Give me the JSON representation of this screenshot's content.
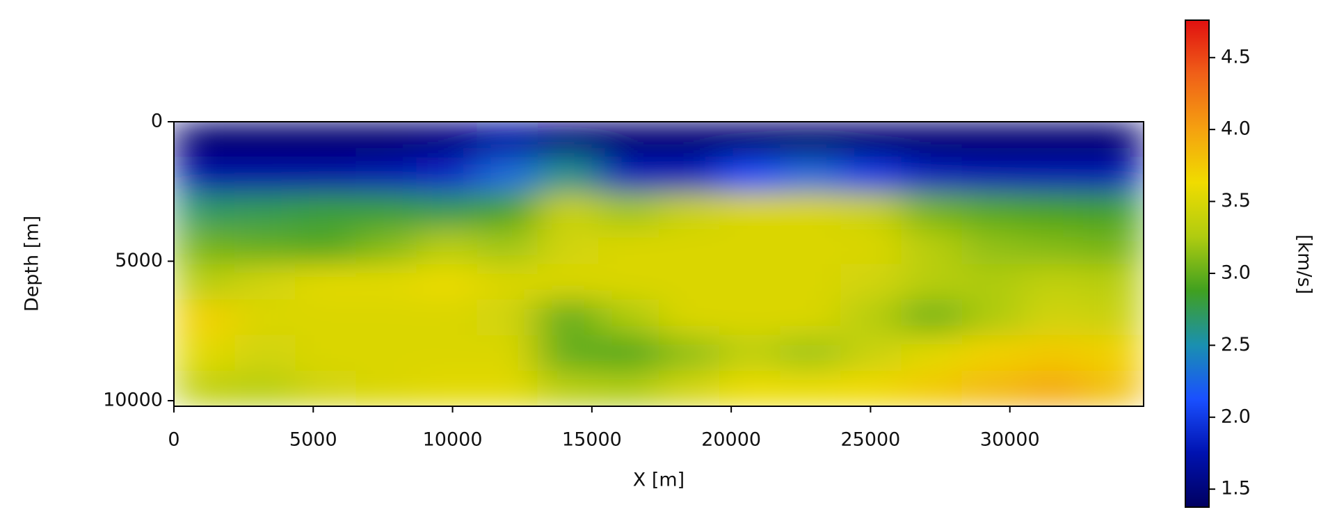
{
  "chart_data": {
    "type": "heatmap",
    "xlabel": "X [m]",
    "ylabel": "Depth [m]",
    "xlim": [
      0,
      34800
    ],
    "ylim": [
      10200,
      0
    ],
    "xticks": [
      0,
      5000,
      10000,
      15000,
      20000,
      25000,
      30000
    ],
    "yticks": [
      0,
      5000,
      10000
    ],
    "z": [
      [
        1.45,
        1.45,
        1.45,
        1.45,
        1.5,
        1.7,
        1.5,
        1.45,
        1.45,
        1.45,
        1.45,
        1.45,
        1.45,
        1.45,
        1.45,
        1.45
      ],
      [
        1.7,
        1.7,
        1.7,
        1.75,
        1.85,
        2.3,
        2.6,
        1.8,
        1.8,
        2.1,
        2.3,
        2.0,
        1.8,
        1.75,
        1.75,
        1.75
      ],
      [
        2.7,
        2.75,
        2.8,
        2.8,
        2.75,
        2.9,
        3.4,
        3.2,
        3.4,
        3.5,
        3.5,
        3.4,
        3.05,
        2.95,
        2.9,
        2.85
      ],
      [
        3.05,
        3.0,
        2.95,
        3.1,
        3.3,
        3.2,
        3.45,
        3.5,
        3.5,
        3.5,
        3.5,
        3.5,
        3.3,
        3.15,
        3.1,
        3.05
      ],
      [
        3.3,
        3.45,
        3.55,
        3.55,
        3.6,
        3.5,
        3.5,
        3.5,
        3.5,
        3.5,
        3.5,
        3.45,
        3.3,
        3.25,
        3.35,
        3.3
      ],
      [
        3.7,
        3.5,
        3.5,
        3.5,
        3.5,
        3.45,
        3.0,
        3.25,
        3.5,
        3.5,
        3.5,
        3.3,
        3.05,
        3.25,
        3.45,
        3.4
      ],
      [
        3.55,
        3.45,
        3.5,
        3.5,
        3.5,
        3.5,
        3.0,
        2.95,
        3.15,
        3.35,
        3.2,
        3.4,
        3.55,
        3.7,
        3.75,
        3.7
      ],
      [
        3.35,
        3.3,
        3.45,
        3.5,
        3.55,
        3.55,
        3.3,
        3.25,
        3.45,
        3.6,
        3.6,
        3.65,
        3.75,
        3.85,
        3.95,
        3.8
      ]
    ],
    "colormap": [
      "#000060",
      "#0012b0",
      "#1a50ff",
      "#1a90b0",
      "#40a020",
      "#b0cc10",
      "#f0dc00",
      "#f5a010",
      "#f06018",
      "#e01010"
    ],
    "clim": [
      1.375,
      4.76
    ],
    "colorbar_label": "[km/s]",
    "colorbar_ticks": [
      1.5,
      {
        "value": 2.0,
        "label": "2.0"
      },
      2.5,
      {
        "value": 3.0,
        "label": "3.0"
      },
      3.5,
      {
        "value": 4.0,
        "label": "4.0"
      },
      4.5
    ]
  }
}
